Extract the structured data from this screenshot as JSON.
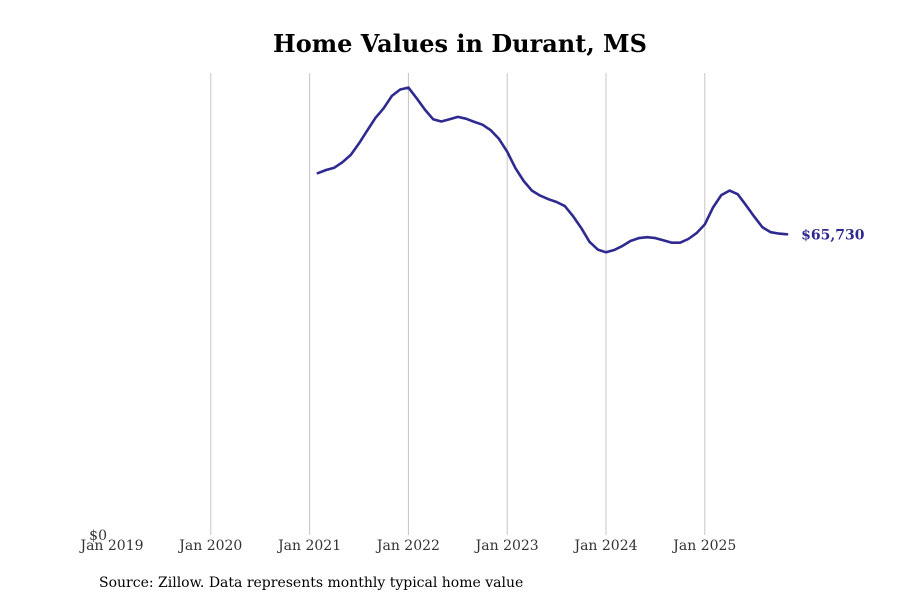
{
  "chart_data": {
    "type": "line",
    "title": "Home Values in Durant, MS",
    "xlabel": "",
    "ylabel": "",
    "x_tick_labels": [
      "Jan 2019",
      "Jan 2020",
      "Jan 2021",
      "Jan 2022",
      "Jan 2023",
      "Jan 2024",
      "Jan 2025"
    ],
    "y_tick_labels": [
      "$0"
    ],
    "ylim": [
      0,
      101000
    ],
    "grid": "vertical",
    "line_color": "#2e2a8f",
    "end_label": "$65,730",
    "series": [
      {
        "name": "Typical home value",
        "x": [
          "2021-02",
          "2021-03",
          "2021-04",
          "2021-05",
          "2021-06",
          "2021-07",
          "2021-08",
          "2021-09",
          "2021-10",
          "2021-11",
          "2021-12",
          "2022-01",
          "2022-02",
          "2022-03",
          "2022-04",
          "2022-05",
          "2022-06",
          "2022-07",
          "2022-08",
          "2022-09",
          "2022-10",
          "2022-11",
          "2022-12",
          "2023-01",
          "2023-02",
          "2023-03",
          "2023-04",
          "2023-05",
          "2023-06",
          "2023-07",
          "2023-08",
          "2023-09",
          "2023-10",
          "2023-11",
          "2023-12",
          "2024-01",
          "2024-02",
          "2024-03",
          "2024-04",
          "2024-05",
          "2024-06",
          "2024-07",
          "2024-08",
          "2024-09",
          "2024-10",
          "2024-11",
          "2024-12",
          "2025-01",
          "2025-02",
          "2025-03",
          "2025-04",
          "2025-05",
          "2025-06",
          "2025-07",
          "2025-08",
          "2025-09",
          "2025-10",
          "2025-11"
        ],
        "values": [
          79100,
          79800,
          80300,
          81500,
          83100,
          85600,
          88400,
          91200,
          93300,
          96000,
          97400,
          97800,
          95500,
          93000,
          90900,
          90400,
          90900,
          91400,
          91000,
          90300,
          89700,
          88500,
          86600,
          83800,
          80200,
          77400,
          75300,
          74200,
          73400,
          72800,
          71900,
          69700,
          67100,
          64100,
          62400,
          61800,
          62300,
          63200,
          64300,
          64900,
          65100,
          64900,
          64400,
          63900,
          63900,
          64700,
          66000,
          67900,
          71600,
          74300,
          75300,
          74500,
          72100,
          69600,
          67300,
          66200,
          65900,
          65730
        ]
      }
    ]
  },
  "source_note": "Source: Zillow. Data represents monthly typical home value"
}
